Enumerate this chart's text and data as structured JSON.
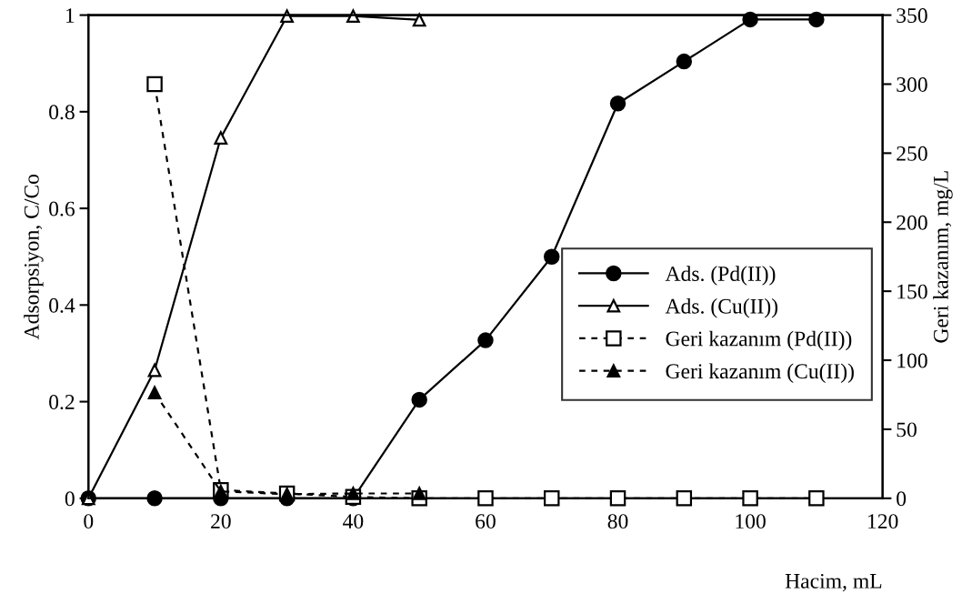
{
  "chart_data": {
    "type": "line",
    "xlabel": "Hacim, mL",
    "ylabel": "Adsorpsiyon, C/Co",
    "y2label": "Geri kazanım, mg/L",
    "xlim": [
      0,
      120
    ],
    "xticks": [
      0,
      20,
      40,
      60,
      80,
      100,
      120
    ],
    "ylim": [
      0,
      1
    ],
    "yticks": [
      0,
      0.2,
      0.4,
      0.6,
      0.8,
      1
    ],
    "y2lim": [
      0,
      350
    ],
    "y2ticks": [
      0,
      50,
      100,
      150,
      200,
      250,
      300,
      350
    ],
    "grid": false,
    "legend": "right",
    "series": [
      {
        "name": "Ads. (Pd(II))",
        "color": "#000000",
        "marker": "circle",
        "line_style": "solid",
        "x": [
          0,
          10,
          20,
          30,
          40,
          50,
          60,
          70,
          80,
          90,
          100,
          110
        ],
        "values": [
          0,
          0,
          0,
          0,
          0,
          0.204,
          0.327,
          0.5,
          0.817,
          0.904,
          0.991,
          0.991
        ]
      },
      {
        "name": "Ads. (Cu(II))",
        "color": "#000000",
        "marker": "triangle",
        "line_style": "solid",
        "x": [
          0,
          10,
          20,
          30,
          40,
          50
        ],
        "values": [
          0,
          0.265,
          0.746,
          0.998,
          0.998,
          0.99
        ]
      },
      {
        "name": "Geri kazanım (Pd(II))",
        "color": "#000000",
        "marker": "square",
        "line_style": "dashed",
        "axis": "y2",
        "x": [
          10,
          20,
          30,
          40,
          50,
          60,
          70,
          80,
          90,
          100,
          110
        ],
        "values": [
          300,
          6,
          3.5,
          1,
          0,
          0,
          0,
          0,
          0,
          0,
          0
        ]
      },
      {
        "name": "Geri kazanım (Cu(II))",
        "color": "#000000",
        "marker": "triangle",
        "line_style": "dashed",
        "axis": "y2",
        "x": [
          10,
          20,
          30,
          40,
          50
        ],
        "values": [
          76.5,
          5,
          3,
          3.5,
          3.5
        ]
      }
    ]
  }
}
